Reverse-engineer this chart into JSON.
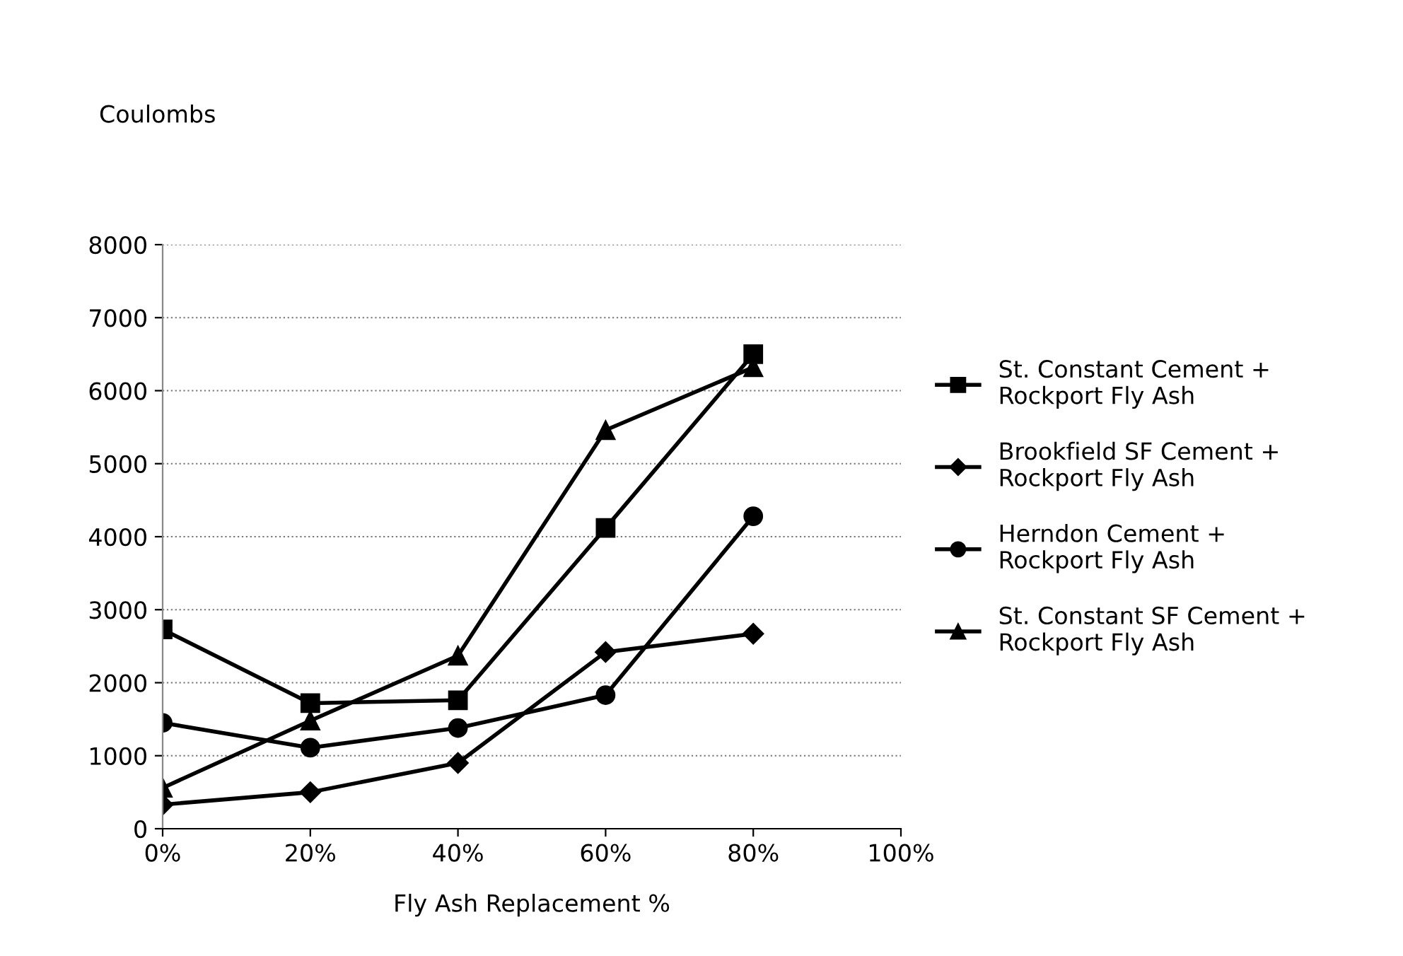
{
  "chart_data": {
    "type": "line",
    "ylabel": "Coulombs",
    "xlabel": "Fly Ash Replacement %",
    "x": [
      0,
      20,
      40,
      60,
      80
    ],
    "xlim": [
      0,
      100
    ],
    "xticks": [
      {
        "value": 0,
        "label": "0%"
      },
      {
        "value": 20,
        "label": "20%"
      },
      {
        "value": 40,
        "label": "40%"
      },
      {
        "value": 60,
        "label": "60%"
      },
      {
        "value": 80,
        "label": "80%"
      },
      {
        "value": 100,
        "label": "100%"
      }
    ],
    "ylim": [
      0,
      8000
    ],
    "yticks": [
      0,
      1000,
      2000,
      3000,
      4000,
      5000,
      6000,
      7000,
      8000
    ],
    "grid": "y",
    "legend": "right",
    "line_style": "solid",
    "series": [
      {
        "name": "St. Constant Cement + Rockport Fly Ash",
        "color": "#000000",
        "marker": "square",
        "values": [
          2730,
          1720,
          1760,
          4120,
          6500
        ]
      },
      {
        "name": "Brookfield SF Cement + Rockport Fly Ash",
        "color": "#000000",
        "marker": "diamond",
        "values": [
          330,
          500,
          900,
          2420,
          2670
        ]
      },
      {
        "name": "Herndon Cement + Rockport Fly Ash",
        "color": "#000000",
        "marker": "circle",
        "values": [
          1450,
          1110,
          1380,
          1830,
          4280
        ]
      },
      {
        "name": "St. Constant SF Cement + Rockport Fly Ash",
        "color": "#000000",
        "marker": "triangle",
        "values": [
          560,
          1480,
          2370,
          5460,
          6320
        ]
      }
    ]
  }
}
